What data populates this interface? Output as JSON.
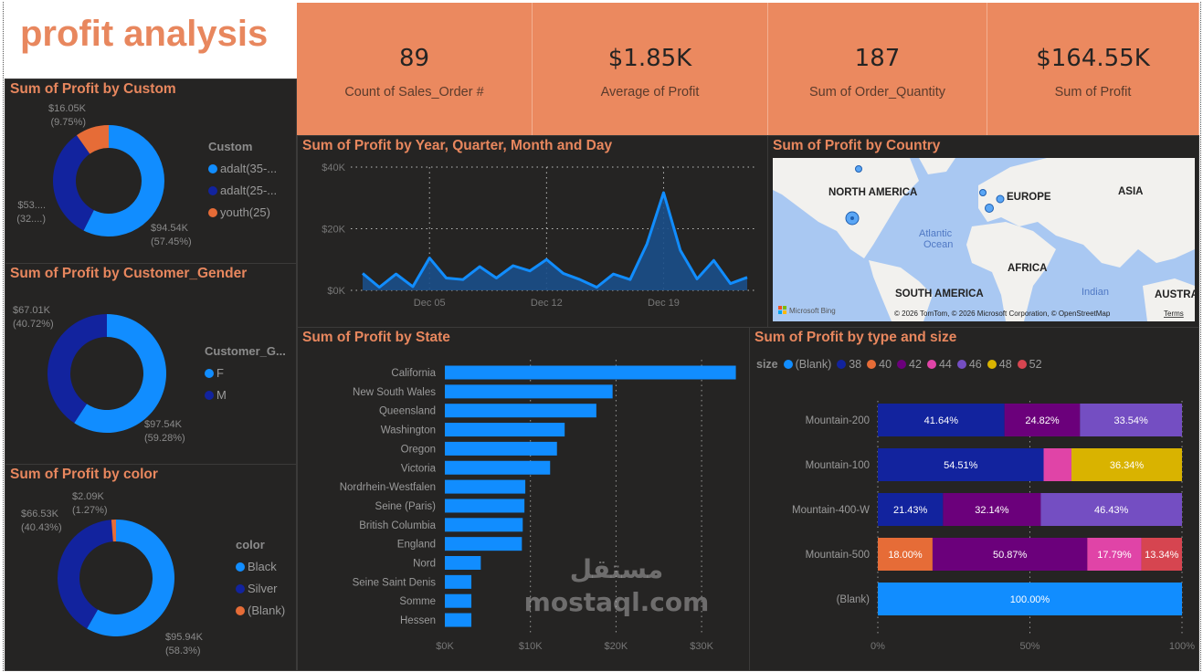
{
  "header": {
    "title": "profit analysis"
  },
  "kpis": [
    {
      "value": "89",
      "label": "Count of Sales_Order #"
    },
    {
      "value": "$1.85K",
      "label": "Average of  Profit"
    },
    {
      "value": "187",
      "label": "Sum of Order_Quantity"
    },
    {
      "value": "$164.55K",
      "label": "Sum of  Profit"
    }
  ],
  "donuts": [
    {
      "title": "Sum of Profit by Custom",
      "legend_title": "Custom",
      "slices": [
        {
          "name": "adalt(35-...",
          "pct": 57.45,
          "color": "#118DFF",
          "label1": "$94.54K",
          "label2": "(57.45%)"
        },
        {
          "name": "adalt(25-...",
          "pct": 32.8,
          "color": "#12239E",
          "label1": "$53....",
          "label2": "(32....)"
        },
        {
          "name": "youth(25)",
          "pct": 9.75,
          "color": "#E66C37",
          "label1": "$16.05K",
          "label2": "(9.75%)"
        }
      ]
    },
    {
      "title": "Sum of Profit by Customer_Gender",
      "legend_title": "Customer_G...",
      "slices": [
        {
          "name": "F",
          "pct": 59.28,
          "color": "#118DFF",
          "label1": "$97.54K",
          "label2": "(59.28%)"
        },
        {
          "name": "M",
          "pct": 40.72,
          "color": "#12239E",
          "label1": "$67.01K",
          "label2": "(40.72%)"
        }
      ]
    },
    {
      "title": "Sum of Profit by color",
      "legend_title": "color",
      "slices": [
        {
          "name": "Black",
          "pct": 58.3,
          "color": "#118DFF",
          "label1": "$95.94K",
          "label2": "(58.3%)"
        },
        {
          "name": "Silver",
          "pct": 40.43,
          "color": "#12239E",
          "label1": "$66.53K",
          "label2": "(40.43%)"
        },
        {
          "name": "(Blank)",
          "pct": 1.27,
          "color": "#E66C37",
          "label1": "$2.09K",
          "label2": "(1.27%)"
        }
      ]
    }
  ],
  "map": {
    "title": "Sum of Profit by Country",
    "labels": [
      "NORTH AMERICA",
      "EUROPE",
      "ASIA",
      "AFRICA",
      "SOUTH AMERICA",
      "AUSTRA"
    ],
    "ocean1": "Atlantic",
    "ocean2": "Ocean",
    "ocean3": "Indian",
    "brand": "Microsoft Bing",
    "copyright": "© 2026 TomTom, © 2026 Microsoft Corporation, © OpenStreetMap",
    "terms": "Terms"
  },
  "chart_data": [
    {
      "type": "area",
      "title": "Sum of Profit by Year, Quarter, Month and Day",
      "x": [
        "Dec 01",
        "Dec 02",
        "Dec 03",
        "Dec 04",
        "Dec 05",
        "Dec 06",
        "Dec 07",
        "Dec 08",
        "Dec 09",
        "Dec 10",
        "Dec 11",
        "Dec 12",
        "Dec 13",
        "Dec 14",
        "Dec 15",
        "Dec 16",
        "Dec 17",
        "Dec 18",
        "Dec 19",
        "Dec 20",
        "Dec 21",
        "Dec 22",
        "Dec 23",
        "Dec 24"
      ],
      "values": [
        5500,
        1000,
        5300,
        1200,
        10500,
        4000,
        3500,
        7700,
        4000,
        8000,
        6300,
        10000,
        5500,
        3500,
        1000,
        5300,
        3500,
        15000,
        31700,
        13000,
        3700,
        9700,
        2200,
        4200
      ],
      "xticks": [
        "Dec 05",
        "Dec 12",
        "Dec 19"
      ],
      "yticks": [
        "$0K",
        "$20K",
        "$40K"
      ],
      "ylim": [
        0,
        40000
      ],
      "color": "#118DFF",
      "grid": true
    },
    {
      "type": "bar",
      "orientation": "horizontal",
      "title": "Sum of Profit by State",
      "categories": [
        "California",
        "New South Wales",
        "Queensland",
        "Washington",
        "Oregon",
        "Victoria",
        "Nordrhein-Westfalen",
        "Seine (Paris)",
        "British Columbia",
        "England",
        "Nord",
        "Seine Saint Denis",
        "Somme",
        "Hessen"
      ],
      "values": [
        34000,
        19600,
        17700,
        14000,
        13100,
        12300,
        9400,
        9300,
        9100,
        9000,
        4200,
        3100,
        3100,
        3100
      ],
      "xticks": [
        "$0K",
        "$10K",
        "$20K",
        "$30K"
      ],
      "xlim": [
        0,
        34000
      ],
      "color": "#118DFF",
      "grid": true
    },
    {
      "type": "bar",
      "orientation": "horizontal",
      "stacked": "100%",
      "title": "Sum of Profit by type and size",
      "legend_title": "size",
      "legend_position": "top-left",
      "legend": [
        {
          "name": "(Blank)",
          "color": "#118DFF"
        },
        {
          "name": "38",
          "color": "#12239E"
        },
        {
          "name": "40",
          "color": "#E66C37"
        },
        {
          "name": "42",
          "color": "#6B007B"
        },
        {
          "name": "44",
          "color": "#E044A7"
        },
        {
          "name": "46",
          "color": "#744EC2"
        },
        {
          "name": "48",
          "color": "#D9B300"
        },
        {
          "name": "52",
          "color": "#D64550"
        }
      ],
      "categories": [
        "Mountain-200",
        "Mountain-100",
        "Mountain-400-W",
        "Mountain-500",
        "(Blank)"
      ],
      "rows": [
        [
          {
            "size": "38",
            "pct": 41.64,
            "label": "41.64%"
          },
          {
            "size": "42",
            "pct": 24.82,
            "label": "24.82%"
          },
          {
            "size": "46",
            "pct": 33.54,
            "label": "33.54%"
          }
        ],
        [
          {
            "size": "38",
            "pct": 54.51,
            "label": "54.51%"
          },
          {
            "size": "44",
            "pct": 9.15,
            "label": ""
          },
          {
            "size": "48",
            "pct": 36.34,
            "label": "36.34%"
          }
        ],
        [
          {
            "size": "38",
            "pct": 21.43,
            "label": "21.43%"
          },
          {
            "size": "42",
            "pct": 32.14,
            "label": "32.14%"
          },
          {
            "size": "46",
            "pct": 46.43,
            "label": "46.43%"
          }
        ],
        [
          {
            "size": "40",
            "pct": 18.0,
            "label": "18.00%"
          },
          {
            "size": "42",
            "pct": 50.87,
            "label": "50.87%"
          },
          {
            "size": "44",
            "pct": 17.79,
            "label": "17.79%"
          },
          {
            "size": "52",
            "pct": 13.34,
            "label": "13.34%"
          }
        ],
        [
          {
            "size": "(Blank)",
            "pct": 100,
            "label": "100.00%"
          }
        ]
      ],
      "xticks": [
        "0%",
        "50%",
        "100%"
      ],
      "xlim": [
        0,
        100
      ]
    }
  ],
  "watermark": "مستقل mostaql.com"
}
